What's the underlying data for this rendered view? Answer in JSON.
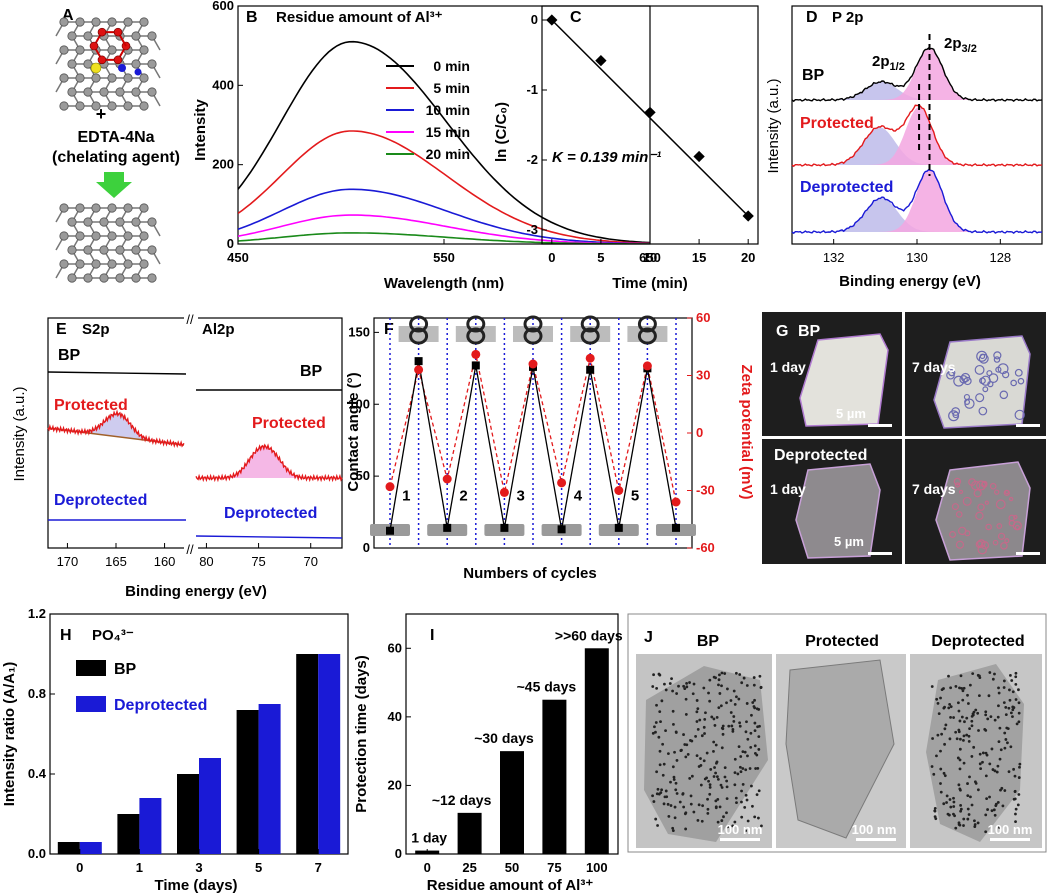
{
  "panels": {
    "A": "A",
    "B": "B",
    "C": "C",
    "D": "D",
    "E": "E",
    "F": "F",
    "G": "G",
    "H": "H",
    "I": "I",
    "J": "J"
  },
  "panel_a": {
    "plus": "+",
    "line1": "EDTA-4Na",
    "line2": "(chelating agent)"
  },
  "panel_d": {
    "peak_label_a": "2p",
    "peak_sub_a": "1/2",
    "peak_label_b": "2p",
    "peak_sub_b": "3/2",
    "title": "P 2p"
  },
  "panel_e": {
    "s_title": "S2p",
    "al_title": "Al2p",
    "break": "//"
  },
  "panel_g": {
    "bp": "BP",
    "deprotected": "Deprotected",
    "day1": "1 day",
    "day7": "7 days",
    "scale": "5 µm"
  },
  "panel_j": {
    "titles": [
      "BP",
      "Protected",
      "Deprotected"
    ],
    "scale": "100 nm"
  },
  "colors": {
    "black": "#000000",
    "red": "#e31a1c",
    "blue": "#1a1ad6",
    "magenta": "#ff00ff",
    "green": "#1a8a1a",
    "pink_fill": "#f3a6e0",
    "violet_fill": "#b9b6e8",
    "green_arrow": "#3dd13d"
  },
  "chart_data": [
    {
      "id": "B",
      "type": "line",
      "title": "Residue amount of Al³⁺",
      "xlabel": "Wavelength (nm)",
      "ylabel": "Intensity",
      "xlim": [
        450,
        650
      ],
      "ylim": [
        0,
        600
      ],
      "xticks": [
        450,
        550,
        650
      ],
      "yticks": [
        0,
        200,
        400,
        600
      ],
      "peak_nm": 505,
      "series": [
        {
          "name": "0 min",
          "peak": 510,
          "color": "#000000"
        },
        {
          "name": "5 min",
          "peak": 285,
          "color": "#e31a1c"
        },
        {
          "name": "10 min",
          "peak": 138,
          "color": "#1a1ad6"
        },
        {
          "name": "15 min",
          "peak": 73,
          "color": "#ff00ff"
        },
        {
          "name": "20 min",
          "peak": 28,
          "color": "#1a8a1a"
        }
      ]
    },
    {
      "id": "C",
      "type": "scatter",
      "xlabel": "Time (min)",
      "ylabel": "ln (C/C₀)",
      "xlim": [
        -1,
        21
      ],
      "ylim": [
        -3.2,
        0.2
      ],
      "xticks": [
        0,
        5,
        10,
        15,
        20
      ],
      "yticks": [
        0,
        -1,
        -2,
        -3
      ],
      "x": [
        0,
        5,
        10,
        15,
        20
      ],
      "y": [
        0,
        -0.58,
        -1.32,
        -1.95,
        -2.8
      ],
      "annotation": "K = 0.139 min⁻¹"
    },
    {
      "id": "D",
      "type": "line",
      "title": "P 2p",
      "xlabel": "Binding energy (eV)",
      "ylabel": "Intensity (a.u.)",
      "xlim": [
        133,
        127
      ],
      "xticks": [
        132,
        130,
        128
      ],
      "series": [
        {
          "name": "BP",
          "color": "#000000"
        },
        {
          "name": "Protected",
          "color": "#e31a1c"
        },
        {
          "name": "Deprotected",
          "color": "#1a1ad6"
        }
      ]
    },
    {
      "id": "E",
      "type": "line",
      "xlabel": "Binding energy (eV)",
      "ylabel": "Intensity (a.u.)",
      "xticks_s": [
        170,
        165,
        160
      ],
      "xticks_al": [
        80,
        75,
        70
      ],
      "series": [
        {
          "name": "BP",
          "color": "#000000"
        },
        {
          "name": "Protected",
          "color": "#e31a1c"
        },
        {
          "name": "Deprotected",
          "color": "#1a1ad6"
        }
      ]
    },
    {
      "id": "F",
      "type": "line",
      "xlabel": "Numbers of cycles",
      "ylabel": "Contact angle (°)",
      "y2label": "Zeta potential (mV)",
      "ylim": [
        0,
        160
      ],
      "yticks": [
        0,
        50,
        100,
        150
      ],
      "y2lim": [
        -60,
        60
      ],
      "y2ticks": [
        -60,
        -30,
        0,
        30,
        60
      ],
      "cycle_labels": [
        "1",
        "2",
        "3",
        "4",
        "5"
      ],
      "contact_angle": [
        12,
        130,
        14,
        127,
        14,
        126,
        13,
        124,
        14,
        125,
        14
      ],
      "zeta": [
        -28,
        33,
        -24,
        41,
        -31,
        36,
        -26,
        39,
        -30,
        35,
        -36
      ]
    },
    {
      "id": "H",
      "type": "bar",
      "title": "PO₄³⁻",
      "xlabel": "Time (days)",
      "ylabel": "Intensity ratio (A/A₁)",
      "categories": [
        "0",
        "1",
        "3",
        "5",
        "7"
      ],
      "ylim": [
        0,
        1.2
      ],
      "yticks": [
        0.0,
        0.4,
        0.8,
        1.2
      ],
      "series": [
        {
          "name": "BP",
          "values": [
            0.06,
            0.2,
            0.4,
            0.72,
            1.0
          ],
          "color": "#000000"
        },
        {
          "name": "Deprotected",
          "values": [
            0.06,
            0.28,
            0.48,
            0.75,
            1.0
          ],
          "color": "#1a1ad6"
        }
      ]
    },
    {
      "id": "I",
      "type": "bar",
      "xlabel": "Residue  amount of Al³⁺",
      "ylabel": "Protection time (days)",
      "categories": [
        "0",
        "25",
        "50",
        "75",
        "100"
      ],
      "values": [
        1,
        12,
        30,
        45,
        60
      ],
      "ylim": [
        0,
        70
      ],
      "yticks": [
        0,
        20,
        40,
        60
      ],
      "labels": [
        "1 day",
        "~12 days",
        "~30 days",
        "~45 days",
        ">>60 days"
      ]
    }
  ]
}
